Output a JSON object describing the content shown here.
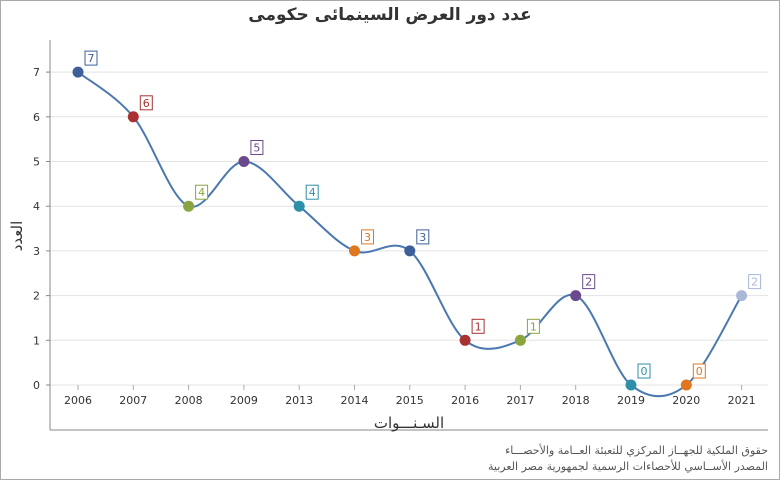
{
  "chart_data": {
    "type": "line",
    "title": "عدد دور العرض السينمائى حكومى",
    "xlabel": "السـنـــوات",
    "ylabel": "العدد",
    "categories": [
      "2006",
      "2007",
      "2008",
      "2009",
      "2013",
      "2014",
      "2015",
      "2016",
      "2017",
      "2018",
      "2019",
      "2020",
      "2021"
    ],
    "series": [
      {
        "values": [
          7,
          6,
          4,
          5,
          4,
          3,
          3,
          1,
          1,
          2,
          0,
          0,
          2
        ]
      }
    ],
    "point_colors": [
      "#3d5f9a",
      "#a83232",
      "#8aa540",
      "#6a4a8c",
      "#2e8fa8",
      "#e0771e",
      "#3d5f9a",
      "#a83232",
      "#8aa540",
      "#6a4a8c",
      "#2e8fa8",
      "#e0771e",
      "#aab8d8"
    ],
    "line_color": "#4a78b0",
    "ylim": [
      0,
      7
    ],
    "yticks": [
      0,
      1,
      2,
      3,
      4,
      5,
      6,
      7
    ],
    "grid": true,
    "legend": "none",
    "data_labels": true
  },
  "footer": {
    "line1": "حقوق الملكية للجهــاز المركزي للتعبئة العــامة والأحصـــاء",
    "line2": "المصدر الأســاسي للأحصاءات الرسمية لجمهورية مصر العربية"
  }
}
